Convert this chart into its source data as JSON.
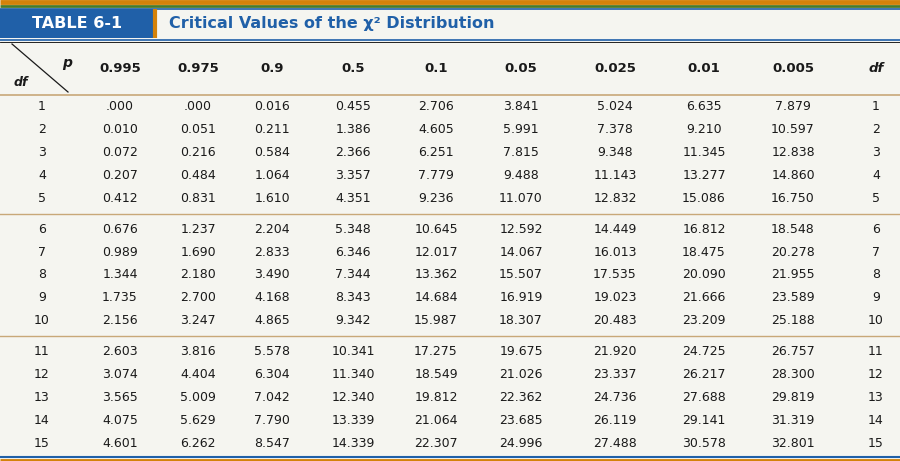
{
  "title_label": "TABLE 6-1",
  "title_text": "Critical Values of the χ² Distribution",
  "col_headers": [
    "0.995",
    "0.975",
    "0.9",
    "0.5",
    "0.1",
    "0.05",
    "0.025",
    "0.01",
    "0.005"
  ],
  "rows": [
    [
      1,
      ".000",
      ".000",
      "0.016",
      "0.455",
      "2.706",
      "3.841",
      "5.024",
      "6.635",
      "7.879"
    ],
    [
      2,
      "0.010",
      "0.051",
      "0.211",
      "1.386",
      "4.605",
      "5.991",
      "7.378",
      "9.210",
      "10.597"
    ],
    [
      3,
      "0.072",
      "0.216",
      "0.584",
      "2.366",
      "6.251",
      "7.815",
      "9.348",
      "11.345",
      "12.838"
    ],
    [
      4,
      "0.207",
      "0.484",
      "1.064",
      "3.357",
      "7.779",
      "9.488",
      "11.143",
      "13.277",
      "14.860"
    ],
    [
      5,
      "0.412",
      "0.831",
      "1.610",
      "4.351",
      "9.236",
      "11.070",
      "12.832",
      "15.086",
      "16.750"
    ],
    [
      6,
      "0.676",
      "1.237",
      "2.204",
      "5.348",
      "10.645",
      "12.592",
      "14.449",
      "16.812",
      "18.548"
    ],
    [
      7,
      "0.989",
      "1.690",
      "2.833",
      "6.346",
      "12.017",
      "14.067",
      "16.013",
      "18.475",
      "20.278"
    ],
    [
      8,
      "1.344",
      "2.180",
      "3.490",
      "7.344",
      "13.362",
      "15.507",
      "17.535",
      "20.090",
      "21.955"
    ],
    [
      9,
      "1.735",
      "2.700",
      "4.168",
      "8.343",
      "14.684",
      "16.919",
      "19.023",
      "21.666",
      "23.589"
    ],
    [
      10,
      "2.156",
      "3.247",
      "4.865",
      "9.342",
      "15.987",
      "18.307",
      "20.483",
      "23.209",
      "25.188"
    ],
    [
      11,
      "2.603",
      "3.816",
      "5.578",
      "10.341",
      "17.275",
      "19.675",
      "21.920",
      "24.725",
      "26.757"
    ],
    [
      12,
      "3.074",
      "4.404",
      "6.304",
      "11.340",
      "18.549",
      "21.026",
      "23.337",
      "26.217",
      "28.300"
    ],
    [
      13,
      "3.565",
      "5.009",
      "7.042",
      "12.340",
      "19.812",
      "22.362",
      "24.736",
      "27.688",
      "29.819"
    ],
    [
      14,
      "4.075",
      "5.629",
      "7.790",
      "13.339",
      "21.064",
      "23.685",
      "26.119",
      "29.141",
      "31.319"
    ],
    [
      15,
      "4.601",
      "6.262",
      "8.547",
      "14.339",
      "22.307",
      "24.996",
      "27.488",
      "30.578",
      "32.801"
    ]
  ],
  "group_separators": [
    5,
    10
  ],
  "bg_color": "#f5f5f0",
  "blue": "#2060a8",
  "orange": "#d4820a",
  "green": "#4a7a28",
  "text_color": "#1a1a1a",
  "sep_line_color": "#c8a878",
  "header_line_color": "#c8a878",
  "orange_top": "#d4820a",
  "blue_band": "#2060a8",
  "green_band": "#4a7a28"
}
